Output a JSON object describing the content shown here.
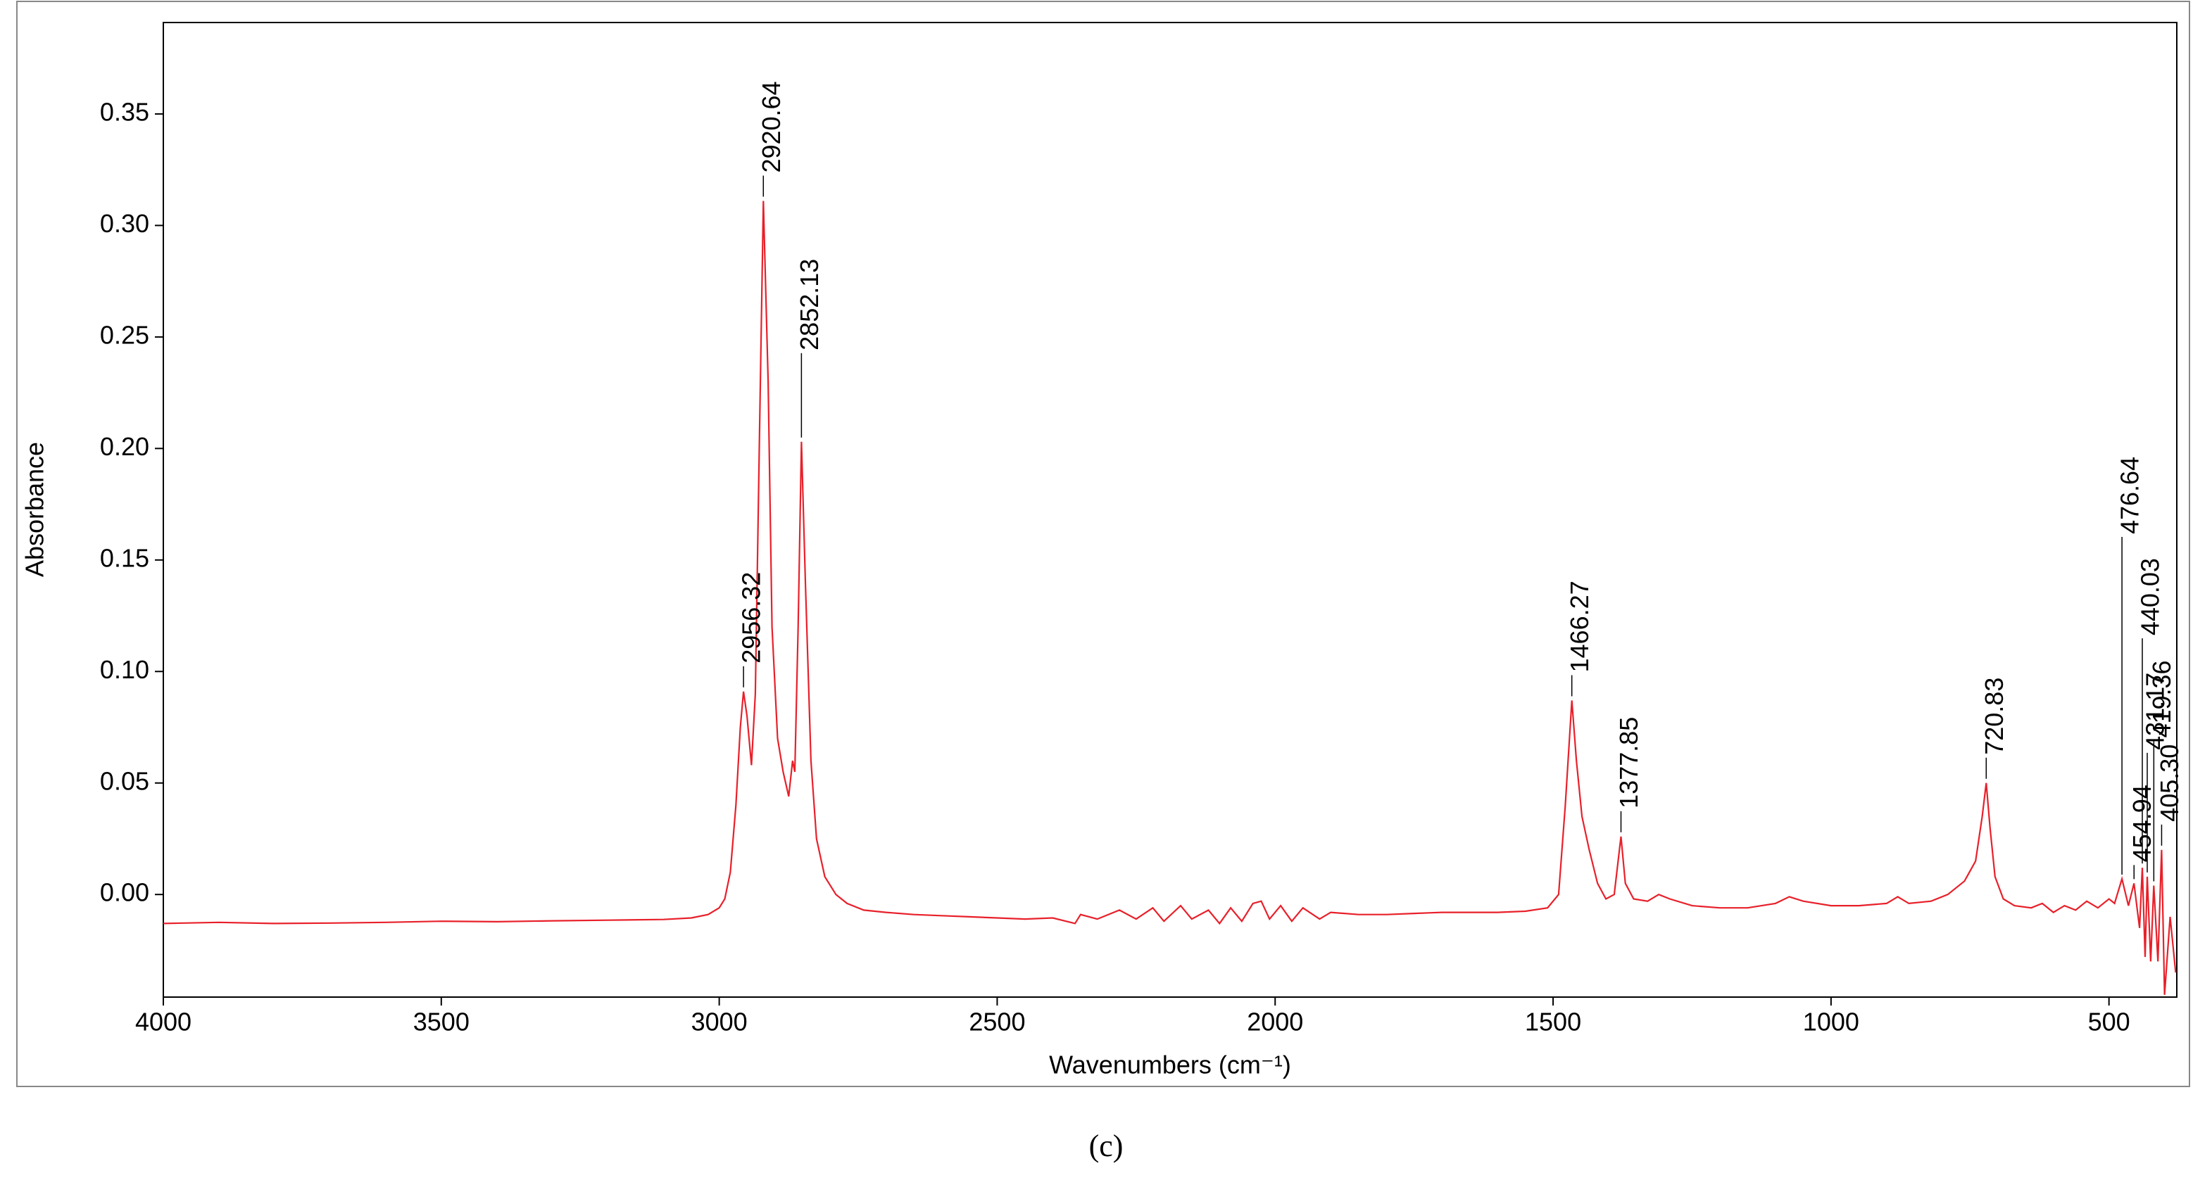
{
  "chart_data": {
    "type": "line",
    "caption": "(c)",
    "xlabel": "Wavenumbers (cm⁻¹)",
    "ylabel": "Absorbance",
    "color": "#e8202a",
    "xlim": [
      4000,
      378
    ],
    "ylim": [
      -0.046,
      0.391
    ],
    "xticks": [
      4000,
      3500,
      3000,
      2500,
      2000,
      1500,
      1000,
      500
    ],
    "yticks": [
      {
        "value": 0,
        "label": "0.00"
      },
      {
        "value": 0.05,
        "label": "0.05"
      },
      {
        "value": 0.1,
        "label": "0.10"
      },
      {
        "value": 0.15,
        "label": "0.15"
      },
      {
        "value": 0.2,
        "label": "0.20"
      },
      {
        "value": 0.25,
        "label": "0.25"
      },
      {
        "value": 0.3,
        "label": "0.30"
      },
      {
        "value": 0.35,
        "label": "0.35"
      }
    ],
    "x": [
      4000,
      3900,
      3800,
      3700,
      3600,
      3500,
      3400,
      3300,
      3200,
      3100,
      3050,
      3020,
      3000,
      2990,
      2980,
      2970,
      2962,
      2956.32,
      2950,
      2942,
      2935,
      2928,
      2920.64,
      2912,
      2905,
      2895,
      2885,
      2875,
      2868,
      2864,
      2858,
      2852.13,
      2845,
      2835,
      2825,
      2810,
      2790,
      2770,
      2740,
      2700,
      2650,
      2600,
      2550,
      2500,
      2450,
      2400,
      2360,
      2350,
      2320,
      2280,
      2250,
      2220,
      2200,
      2170,
      2150,
      2120,
      2100,
      2080,
      2060,
      2040,
      2025,
      2010,
      1990,
      1970,
      1950,
      1920,
      1900,
      1850,
      1800,
      1750,
      1700,
      1650,
      1600,
      1550,
      1510,
      1490,
      1478,
      1466.27,
      1458,
      1448,
      1435,
      1420,
      1405,
      1390,
      1377.85,
      1370,
      1355,
      1330,
      1310,
      1290,
      1250,
      1200,
      1150,
      1100,
      1075,
      1050,
      1000,
      950,
      900,
      880,
      860,
      820,
      790,
      760,
      740,
      728,
      720.83,
      714,
      705,
      690,
      670,
      640,
      620,
      600,
      580,
      560,
      540,
      520,
      500,
      490,
      476.64,
      465,
      454.94,
      445,
      440.03,
      435,
      431.17,
      425,
      419.36,
      412,
      405.3,
      400,
      390,
      380
    ],
    "values": [
      -0.013,
      -0.0125,
      -0.013,
      -0.0128,
      -0.0125,
      -0.012,
      -0.0122,
      -0.0118,
      -0.0115,
      -0.0112,
      -0.0105,
      -0.009,
      -0.006,
      -0.002,
      0.01,
      0.04,
      0.075,
      0.091,
      0.08,
      0.058,
      0.09,
      0.2,
      0.311,
      0.23,
      0.12,
      0.07,
      0.055,
      0.044,
      0.06,
      0.055,
      0.12,
      0.203,
      0.14,
      0.06,
      0.025,
      0.008,
      0,
      -0.004,
      -0.007,
      -0.008,
      -0.009,
      -0.0095,
      -0.01,
      -0.0105,
      -0.011,
      -0.0105,
      -0.013,
      -0.009,
      -0.011,
      -0.007,
      -0.011,
      -0.006,
      -0.012,
      -0.005,
      -0.011,
      -0.007,
      -0.013,
      -0.006,
      -0.012,
      -0.004,
      -0.003,
      -0.011,
      -0.005,
      -0.012,
      -0.006,
      -0.011,
      -0.008,
      -0.009,
      -0.009,
      -0.0085,
      -0.008,
      -0.008,
      -0.008,
      -0.0075,
      -0.006,
      0,
      0.04,
      0.087,
      0.06,
      0.035,
      0.02,
      0.005,
      -0.002,
      0,
      0.026,
      0.005,
      -0.002,
      -0.003,
      0,
      -0.002,
      -0.005,
      -0.006,
      -0.006,
      -0.004,
      -0.001,
      -0.003,
      -0.005,
      -0.005,
      -0.004,
      -0.001,
      -0.004,
      -0.003,
      0,
      0.006,
      0.015,
      0.035,
      0.05,
      0.03,
      0.008,
      -0.002,
      -0.005,
      -0.006,
      -0.004,
      -0.008,
      -0.005,
      -0.007,
      -0.003,
      -0.006,
      -0.002,
      -0.004,
      0.007,
      -0.005,
      0.005,
      -0.015,
      0.012,
      -0.028,
      0.008,
      -0.03,
      0.004,
      -0.03,
      0.02,
      -0.045,
      -0.01,
      -0.035
    ],
    "annotations": [
      {
        "label": "2956.32",
        "x": 2956.32,
        "y": 0.091
      },
      {
        "label": "2920.64",
        "x": 2920.64,
        "y": 0.311
      },
      {
        "label": "2852.13",
        "x": 2852.13,
        "y": 0.203
      },
      {
        "label": "1466.27",
        "x": 1466.27,
        "y": 0.087
      },
      {
        "label": "1377.85",
        "x": 1377.85,
        "y": 0.026
      },
      {
        "label": "720.83",
        "x": 720.83,
        "y": 0.05
      },
      {
        "label": "476.64",
        "x": 476.64,
        "y": 0.007
      },
      {
        "label": "454.94",
        "x": 454.94,
        "y": 0.005
      },
      {
        "label": "440.03",
        "x": 440.03,
        "y": 0.012
      },
      {
        "label": "431.17",
        "x": 431.17,
        "y": 0.008
      },
      {
        "label": "419.36",
        "x": 419.36,
        "y": 0.004
      },
      {
        "label": "405.30",
        "x": 405.3,
        "y": 0.02
      }
    ]
  }
}
